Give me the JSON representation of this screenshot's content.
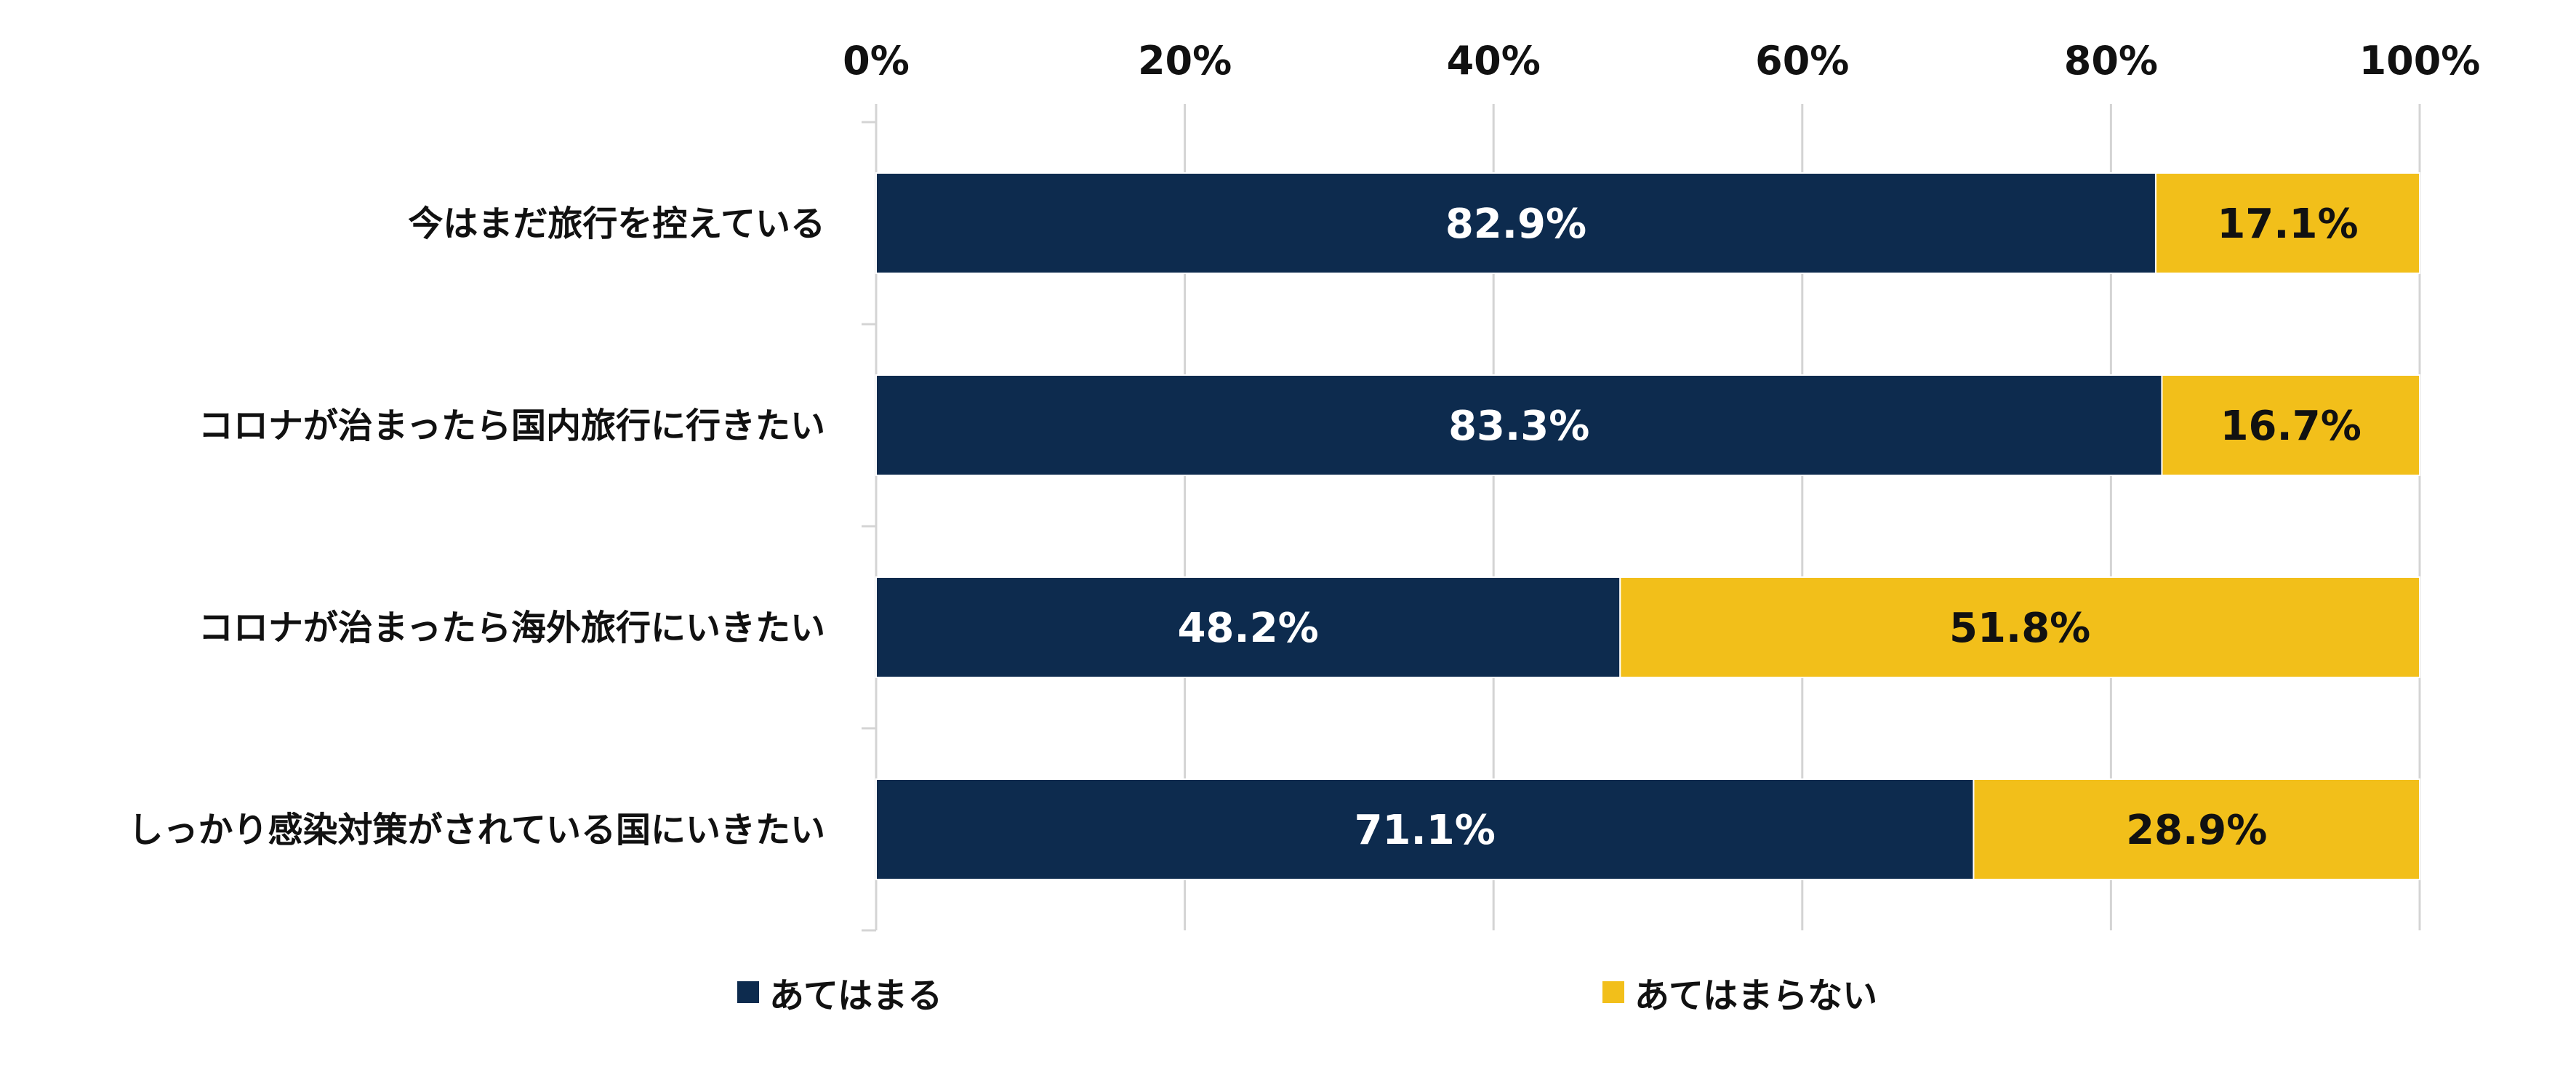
{
  "chart_data": {
    "type": "bar",
    "orientation": "horizontal",
    "stacked": true,
    "categories": [
      "今はまだ旅行を控えている",
      "コロナが治まったら国内旅行に行きたい",
      "コロナが治まったら海外旅行にいきたい",
      "しっかり感染対策がされている国にいきたい"
    ],
    "series": [
      {
        "name": "あてはまる",
        "values": [
          82.9,
          83.3,
          48.2,
          71.1
        ],
        "labels": [
          "82.9%",
          "83.3%",
          "48.2%",
          "71.1%"
        ],
        "color": "#0d2b4e",
        "label_color": "#ffffff"
      },
      {
        "name": "あてはまらない",
        "values": [
          17.1,
          16.7,
          51.8,
          28.9
        ],
        "labels": [
          "17.1%",
          "16.7%",
          "51.8%",
          "28.9%"
        ],
        "color": "#f2bf1a",
        "label_color": "#111111"
      }
    ],
    "xlim": [
      0,
      100
    ],
    "xticks": [
      "0%",
      "20%",
      "40%",
      "60%",
      "80%",
      "100%"
    ],
    "x_axis_position": "top",
    "grid": true,
    "legend_position": "bottom"
  }
}
